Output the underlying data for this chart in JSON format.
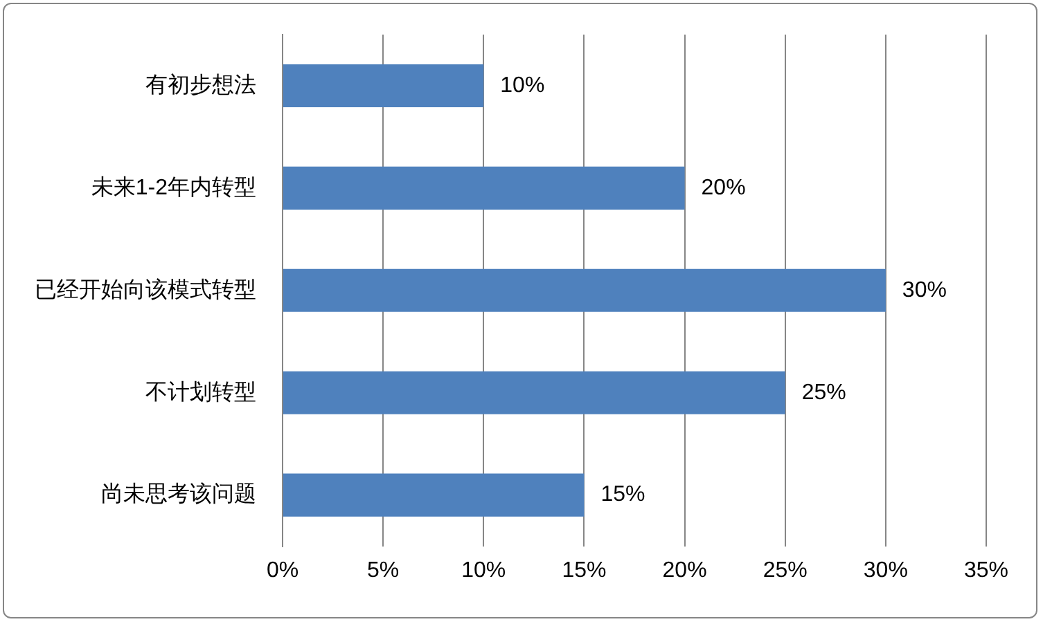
{
  "chart_data": {
    "type": "bar",
    "orientation": "horizontal",
    "categories": [
      "有初步想法",
      "未来1-2年内转型",
      "已经开始向该模式转型",
      "不计划转型",
      "尚未思考该问题"
    ],
    "values": [
      10,
      20,
      30,
      25,
      15
    ],
    "value_labels": [
      "10%",
      "20%",
      "30%",
      "25%",
      "15%"
    ],
    "color": "#4f81bd",
    "xlim": [
      0,
      35
    ],
    "xticks": [
      {
        "value": 0,
        "label": "0%"
      },
      {
        "value": 5,
        "label": "5%"
      },
      {
        "value": 10,
        "label": "10%"
      },
      {
        "value": 15,
        "label": "15%"
      },
      {
        "value": 20,
        "label": "20%"
      },
      {
        "value": 25,
        "label": "25%"
      },
      {
        "value": 30,
        "label": "30%"
      },
      {
        "value": 35,
        "label": "35%"
      }
    ],
    "grid": "x",
    "legend": false
  }
}
